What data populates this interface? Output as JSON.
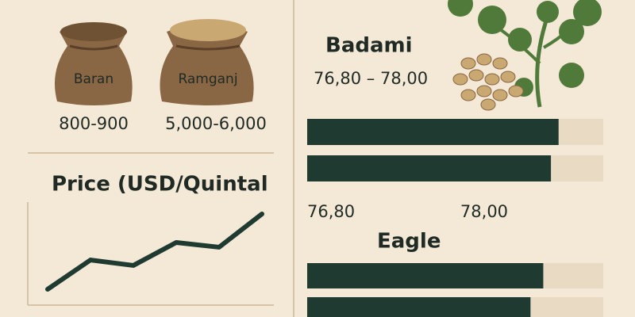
{
  "sacks": [
    {
      "label": "Baran",
      "price": "800-900"
    },
    {
      "label": "Ramganj",
      "price": "5,000-6,000"
    }
  ],
  "chart_data": [
    {
      "type": "line",
      "title": "Price (USD/Quintal",
      "categories": [
        null,
        null,
        null,
        null,
        null,
        null
      ],
      "values": [
        15.4,
        43.8,
        38.5,
        60.8,
        56.2,
        88.5
      ],
      "ylim": [
        0,
        100
      ],
      "color": "#1f3a30"
    },
    {
      "type": "hbar",
      "title": "Badami",
      "subtitle": "76,80 – 78,00",
      "values": [
        78.77,
        78.71
      ],
      "xlim": [
        76.8,
        79.12
      ],
      "xticks": [
        {
          "value": 76.8,
          "label": "76,80"
        },
        {
          "value": 78,
          "label": "78,00"
        }
      ],
      "color": "#1f3a30",
      "track_color": "#e9dbc3"
    },
    {
      "type": "hbar",
      "title": "Eagle",
      "values": [
        78.65,
        78.55
      ],
      "xlim": [
        76.8,
        79.12
      ],
      "color": "#1f3a30",
      "track_color": "#e9dbc3"
    }
  ]
}
